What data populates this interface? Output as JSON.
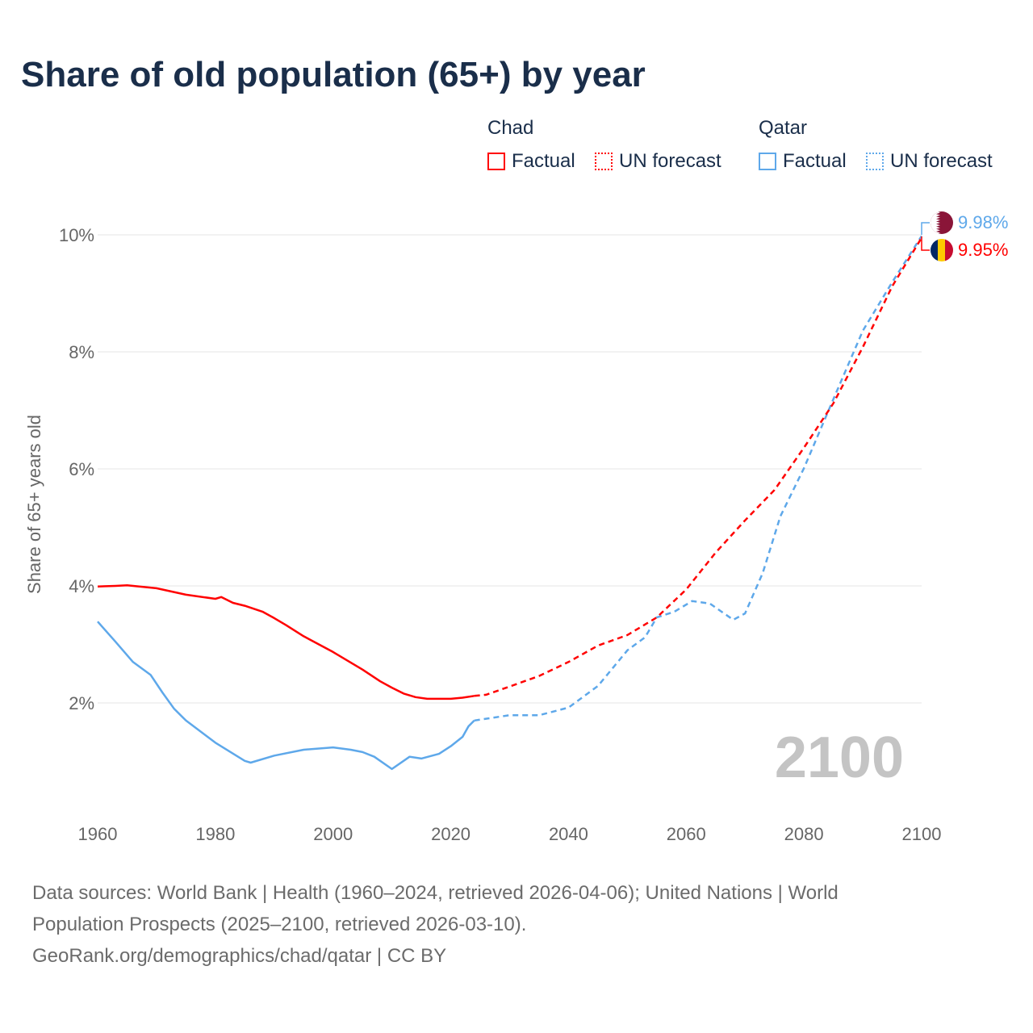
{
  "title": "Share of old population (65+) by year",
  "legend": {
    "groups": [
      {
        "name": "Chad",
        "color": "#ff0000",
        "factual": "Factual",
        "forecast": "UN forecast"
      },
      {
        "name": "Qatar",
        "color": "#5ea8ea",
        "factual": "Factual",
        "forecast": "UN forecast"
      }
    ]
  },
  "year_watermark": "2100",
  "footer": {
    "line1": "Data sources: World Bank | Health (1960–2024, retrieved 2026-04-06); United Nations | World",
    "line2": "Population Prospects (2025–2100, retrieved 2026-03-10).",
    "line3": "GeoRank.org/demographics/chad/qatar | CC BY"
  },
  "chart_data": {
    "type": "line",
    "title": "Share of old population (65+) by year",
    "xlabel": "",
    "ylabel": "Share of 65+ years old",
    "xlim": [
      1960,
      2100
    ],
    "ylim": [
      0,
      10
    ],
    "xticks": [
      1960,
      1980,
      2000,
      2020,
      2040,
      2060,
      2080,
      2100
    ],
    "yticks": [
      2,
      4,
      6,
      8,
      10
    ],
    "ytick_labels": [
      "2%",
      "4%",
      "6%",
      "8%",
      "10%"
    ],
    "grid": "horizontal",
    "legend_position": "top-right",
    "series": [
      {
        "name": "Chad",
        "color": "#ff0000",
        "end_label": "9.95%",
        "flag": "chad-flag",
        "factual": [
          [
            1960,
            3.99
          ],
          [
            1963,
            4.0
          ],
          [
            1965,
            4.01
          ],
          [
            1970,
            3.96
          ],
          [
            1975,
            3.85
          ],
          [
            1980,
            3.78
          ],
          [
            1981,
            3.81
          ],
          [
            1983,
            3.71
          ],
          [
            1985,
            3.66
          ],
          [
            1988,
            3.56
          ],
          [
            1990,
            3.45
          ],
          [
            1992,
            3.33
          ],
          [
            1995,
            3.14
          ],
          [
            2000,
            2.87
          ],
          [
            2005,
            2.57
          ],
          [
            2008,
            2.37
          ],
          [
            2010,
            2.26
          ],
          [
            2012,
            2.16
          ],
          [
            2014,
            2.1
          ],
          [
            2016,
            2.07
          ],
          [
            2020,
            2.07
          ],
          [
            2022,
            2.09
          ],
          [
            2024,
            2.12
          ]
        ],
        "forecast": [
          [
            2024,
            2.12
          ],
          [
            2026,
            2.14
          ],
          [
            2030,
            2.28
          ],
          [
            2035,
            2.46
          ],
          [
            2040,
            2.7
          ],
          [
            2045,
            2.98
          ],
          [
            2050,
            3.16
          ],
          [
            2055,
            3.46
          ],
          [
            2060,
            3.94
          ],
          [
            2065,
            4.57
          ],
          [
            2070,
            5.12
          ],
          [
            2075,
            5.64
          ],
          [
            2080,
            6.36
          ],
          [
            2085,
            7.12
          ],
          [
            2090,
            8.08
          ],
          [
            2095,
            9.12
          ],
          [
            2100,
            9.95
          ]
        ]
      },
      {
        "name": "Qatar",
        "color": "#5ea8ea",
        "end_label": "9.98%",
        "flag": "qatar-flag",
        "factual": [
          [
            1960,
            3.39
          ],
          [
            1963,
            3.05
          ],
          [
            1966,
            2.7
          ],
          [
            1969,
            2.48
          ],
          [
            1971,
            2.18
          ],
          [
            1973,
            1.9
          ],
          [
            1975,
            1.7
          ],
          [
            1980,
            1.32
          ],
          [
            1985,
            1.01
          ],
          [
            1986,
            0.98
          ],
          [
            1990,
            1.1
          ],
          [
            1995,
            1.2
          ],
          [
            2000,
            1.24
          ],
          [
            2003,
            1.2
          ],
          [
            2005,
            1.16
          ],
          [
            2007,
            1.08
          ],
          [
            2010,
            0.87
          ],
          [
            2013,
            1.08
          ],
          [
            2015,
            1.05
          ],
          [
            2018,
            1.13
          ],
          [
            2020,
            1.26
          ],
          [
            2022,
            1.42
          ],
          [
            2023,
            1.6
          ],
          [
            2024,
            1.7
          ]
        ],
        "forecast": [
          [
            2024,
            1.7
          ],
          [
            2030,
            1.79
          ],
          [
            2035,
            1.79
          ],
          [
            2040,
            1.92
          ],
          [
            2045,
            2.29
          ],
          [
            2050,
            2.9
          ],
          [
            2053,
            3.12
          ],
          [
            2055,
            3.46
          ],
          [
            2058,
            3.56
          ],
          [
            2061,
            3.74
          ],
          [
            2064,
            3.7
          ],
          [
            2068,
            3.42
          ],
          [
            2070,
            3.53
          ],
          [
            2073,
            4.22
          ],
          [
            2076,
            5.19
          ],
          [
            2080,
            6.01
          ],
          [
            2085,
            7.19
          ],
          [
            2090,
            8.36
          ],
          [
            2095,
            9.19
          ],
          [
            2100,
            9.98
          ]
        ]
      }
    ]
  }
}
